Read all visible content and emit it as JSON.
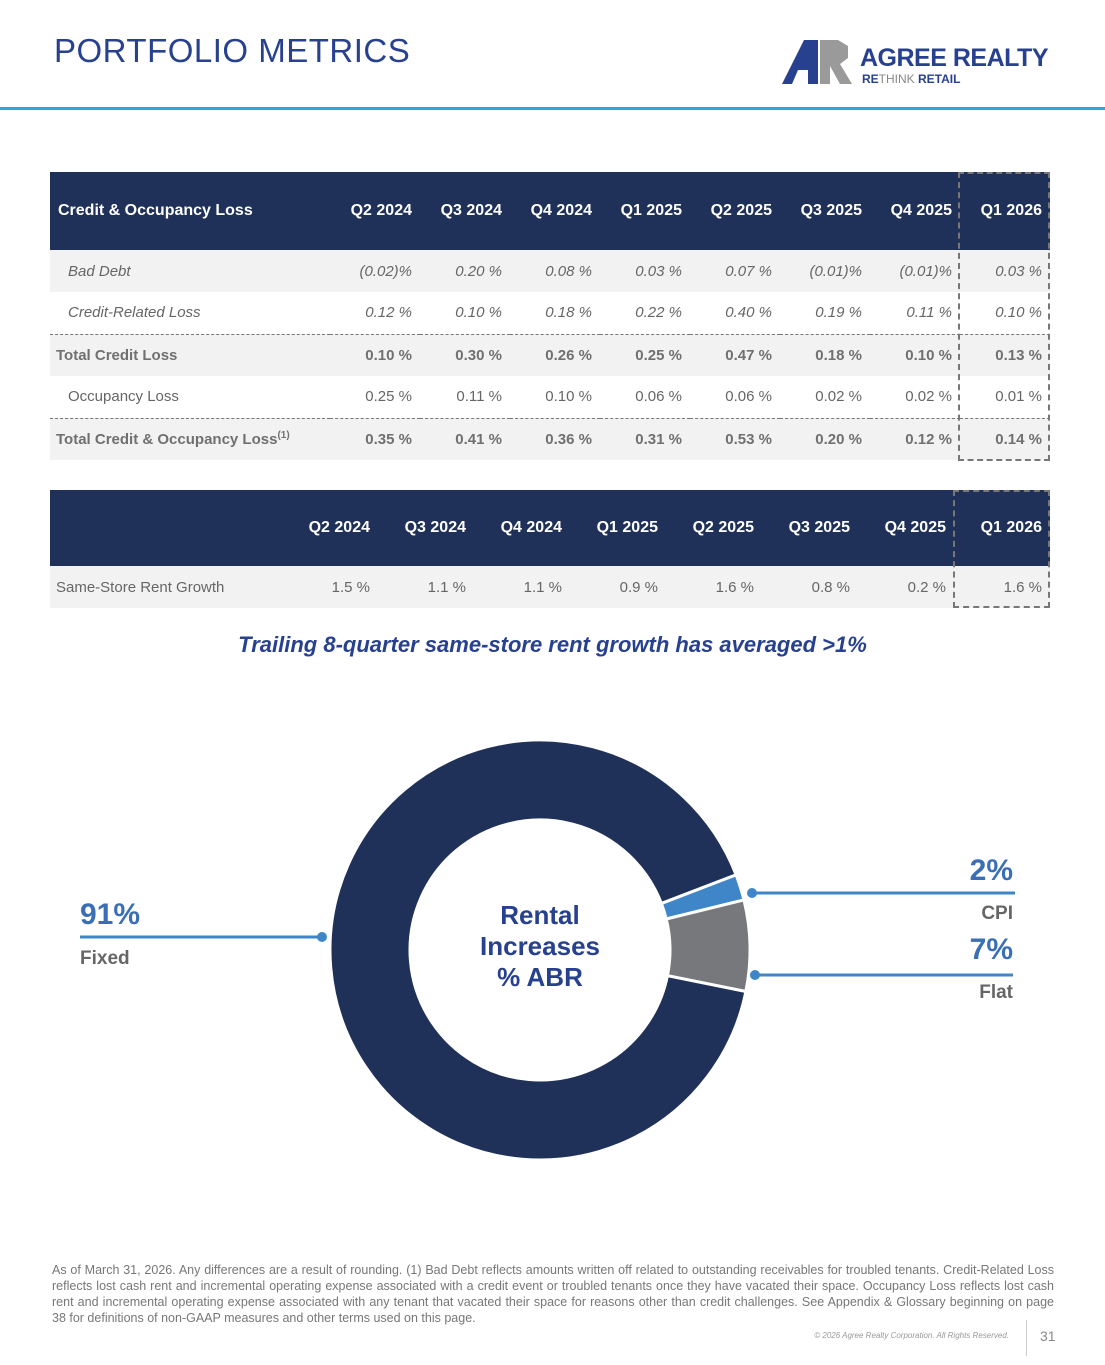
{
  "header": {
    "title": "PORTFOLIO METRICS",
    "logo_name": "AGREE REALTY",
    "logo_tag_re": "RE",
    "logo_tag_think": "THINK",
    "logo_tag_retail": " RETAIL"
  },
  "table1": {
    "title": "Credit & Occupancy Loss",
    "columns": [
      "Q2 2024",
      "Q3 2024",
      "Q4 2024",
      "Q1 2025",
      "Q2 2025",
      "Q3 2025",
      "Q4 2025",
      "Q1 2026"
    ],
    "rows": [
      {
        "label": "Bad Debt",
        "values": [
          "(0.02)%",
          "0.20 %",
          "0.08 %",
          "0.03 %",
          "0.07 %",
          "(0.01)%",
          "(0.01)%",
          "0.03 %"
        ]
      },
      {
        "label": "Credit-Related Loss",
        "values": [
          "0.12 %",
          "0.10 %",
          "0.18 %",
          "0.22 %",
          "0.40 %",
          "0.19 %",
          "0.11 %",
          "0.10 %"
        ]
      },
      {
        "label": "Total Credit Loss",
        "values": [
          "0.10 %",
          "0.30 %",
          "0.26 %",
          "0.25 %",
          "0.47 %",
          "0.18 %",
          "0.10 %",
          "0.13 %"
        ]
      },
      {
        "label": "Occupancy Loss",
        "values": [
          "0.25 %",
          "0.11 %",
          "0.10 %",
          "0.06 %",
          "0.06 %",
          "0.02 %",
          "0.02 %",
          "0.01 %"
        ]
      },
      {
        "label": "Total Credit & Occupancy Loss",
        "sup": "(1)",
        "values": [
          "0.35 %",
          "0.41 %",
          "0.36 %",
          "0.31 %",
          "0.53 %",
          "0.20 %",
          "0.12 %",
          "0.14 %"
        ]
      }
    ]
  },
  "table2": {
    "columns": [
      "Q2 2024",
      "Q3 2024",
      "Q4 2024",
      "Q1 2025",
      "Q2 2025",
      "Q3 2025",
      "Q4 2025",
      "Q1 2026"
    ],
    "rows": [
      {
        "label": "Same-Store Rent Growth",
        "values": [
          "1.5 %",
          "1.1 %",
          "1.1 %",
          "0.9 %",
          "1.6 %",
          "0.8 %",
          "0.2 %",
          "1.6 %"
        ]
      }
    ]
  },
  "note": "Trailing 8-quarter same-store rent growth has averaged >1%",
  "chart_data": {
    "type": "pie",
    "title": "Rental Increases % ABR",
    "center_label": [
      "Rental",
      "Increases",
      "% ABR"
    ],
    "slices": [
      {
        "label": "CPI",
        "value": 2,
        "display": "2%",
        "color": "#3f86c9"
      },
      {
        "label": "Flat",
        "value": 7,
        "display": "7%",
        "color": "#76787b"
      },
      {
        "label": "Fixed",
        "value": 91,
        "display": "91%",
        "color": "#1f3158"
      }
    ]
  },
  "footer": {
    "disclaimer": "As of March 31, 2026. Any differences are a result of rounding. (1) Bad Debt reflects amounts written off related to outstanding receivables for troubled tenants. Credit-Related Loss reflects lost cash rent and incremental operating expense associated with a credit event or troubled tenants once they have vacated their space. Occupancy Loss reflects lost cash rent and incremental operating expense associated with any tenant that vacated their space for reasons other than credit challenges. See Appendix & Glossary beginning on page 38 for definitions of non-GAAP measures and other terms used on this page.",
    "copyright": "© 2026 Agree Realty Corporation. All Rights Reserved.",
    "page": "31"
  }
}
